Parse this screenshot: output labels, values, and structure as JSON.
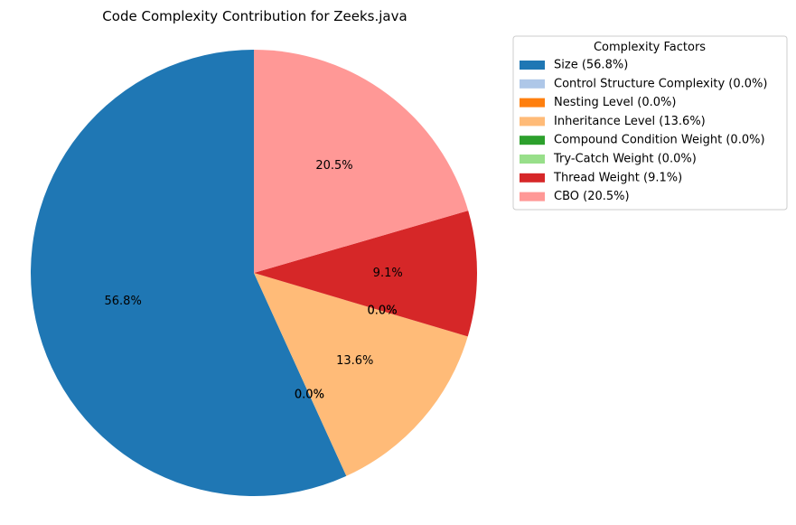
{
  "chart_data": {
    "type": "pie",
    "title": "Code Complexity Contribution for Zeeks.java",
    "slices": [
      {
        "label": "Size",
        "value": 56.8,
        "pct_label": "56.8%",
        "legend_text": "Size (56.8%)",
        "color": "#1f77b4"
      },
      {
        "label": "Control Structure Complexity",
        "value": 0.0,
        "pct_label": "0.0%",
        "legend_text": "Control Structure Complexity (0.0%)",
        "color": "#aec7e8"
      },
      {
        "label": "Nesting Level",
        "value": 0.0,
        "pct_label": "0.0%",
        "legend_text": "Nesting Level (0.0%)",
        "color": "#ff7f0e"
      },
      {
        "label": "Inheritance Level",
        "value": 13.6,
        "pct_label": "13.6%",
        "legend_text": "Inheritance Level (13.6%)",
        "color": "#ffbb78"
      },
      {
        "label": "Compound Condition Weight",
        "value": 0.0,
        "pct_label": "0.0%",
        "legend_text": "Compound Condition Weight (0.0%)",
        "color": "#2ca02c"
      },
      {
        "label": "Try-Catch Weight",
        "value": 0.0,
        "pct_label": "0.0%",
        "legend_text": "Try-Catch Weight (0.0%)",
        "color": "#98df8a"
      },
      {
        "label": "Thread Weight",
        "value": 9.1,
        "pct_label": "9.1%",
        "legend_text": "Thread Weight (9.1%)",
        "color": "#d62728"
      },
      {
        "label": "CBO",
        "value": 20.5,
        "pct_label": "20.5%",
        "legend_text": "CBO (20.5%)",
        "color": "#ff9896"
      }
    ],
    "start_angle": "top",
    "direction": "counterclockwise",
    "legend": {
      "title": "Complexity Factors",
      "placement": "upper-right, outside plot"
    }
  }
}
